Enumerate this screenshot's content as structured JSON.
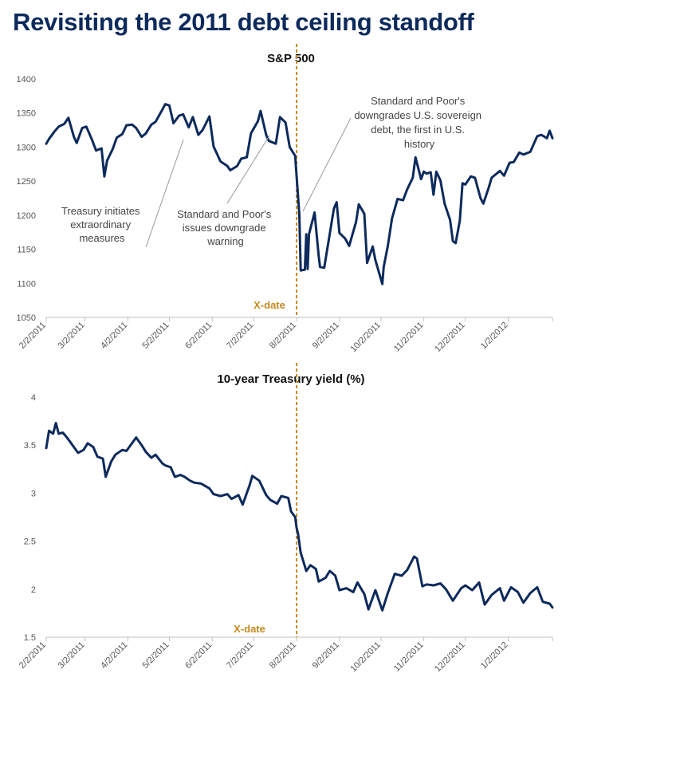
{
  "page": {
    "title": "Revisiting the 2011 debt ceiling standoff"
  },
  "colors": {
    "series": "#0d2a5c",
    "xdate": "#c48a1f",
    "title": "#0d2a5c"
  },
  "chart_data": [
    {
      "type": "line",
      "title": "S&P 500",
      "xlabel": "",
      "ylabel": "",
      "ylim": [
        1050,
        1400
      ],
      "yticks": [
        "1400",
        "1350",
        "1300",
        "1250",
        "1200",
        "1150",
        "1100",
        "1050"
      ],
      "xticks": [
        "2/2/2011",
        "3/2/2011",
        "4/2/2011",
        "5/2/2011",
        "6/2/2011",
        "7/2/2011",
        "8/2/2011",
        "9/2/2011",
        "10/2/2011",
        "11/2/2011",
        "12/2/2011",
        "1/2/2012"
      ],
      "grid": false,
      "marker": {
        "date": "2011-08-02",
        "label": "X-date"
      },
      "annotations": [
        {
          "lines": [
            "Treasury initiates",
            "extraordinary",
            "measures"
          ]
        },
        {
          "lines": [
            "Standard and Poor's",
            "issues downgrade",
            "warning"
          ]
        },
        {
          "lines": [
            "Standard and Poor's",
            "downgrades U.S. sovereign",
            "debt, the first in U.S.",
            "history"
          ]
        }
      ],
      "series": [
        {
          "x": [
            "2011-02-02",
            "2011-02-04",
            "2011-02-08",
            "2011-02-11",
            "2011-02-15",
            "2011-02-18",
            "2011-02-22",
            "2011-02-24",
            "2011-02-28",
            "2011-03-03",
            "2011-03-07",
            "2011-03-10",
            "2011-03-14",
            "2011-03-16",
            "2011-03-18",
            "2011-03-22",
            "2011-03-25",
            "2011-03-29",
            "2011-04-01",
            "2011-04-05",
            "2011-04-08",
            "2011-04-12",
            "2011-04-15",
            "2011-04-19",
            "2011-04-22",
            "2011-04-27",
            "2011-04-29",
            "2011-05-02",
            "2011-05-05",
            "2011-05-09",
            "2011-05-12",
            "2011-05-16",
            "2011-05-19",
            "2011-05-23",
            "2011-05-26",
            "2011-05-31",
            "2011-06-03",
            "2011-06-08",
            "2011-06-13",
            "2011-06-15",
            "2011-06-20",
            "2011-06-23",
            "2011-06-27",
            "2011-06-30",
            "2011-07-05",
            "2011-07-07",
            "2011-07-11",
            "2011-07-13",
            "2011-07-18",
            "2011-07-21",
            "2011-07-25",
            "2011-07-28",
            "2011-08-01",
            "2011-08-02",
            "2011-08-04",
            "2011-08-05",
            "2011-08-08",
            "2011-08-09",
            "2011-08-10",
            "2011-08-11",
            "2011-08-15",
            "2011-08-18",
            "2011-08-19",
            "2011-08-22",
            "2011-08-25",
            "2011-08-29",
            "2011-08-31",
            "2011-09-02",
            "2011-09-06",
            "2011-09-09",
            "2011-09-14",
            "2011-09-16",
            "2011-09-20",
            "2011-09-22",
            "2011-09-26",
            "2011-09-28",
            "2011-10-03",
            "2011-10-04",
            "2011-10-07",
            "2011-10-10",
            "2011-10-14",
            "2011-10-18",
            "2011-10-21",
            "2011-10-25",
            "2011-10-27",
            "2011-10-31",
            "2011-11-02",
            "2011-11-04",
            "2011-11-07",
            "2011-11-09",
            "2011-11-11",
            "2011-11-14",
            "2011-11-17",
            "2011-11-21",
            "2011-11-23",
            "2011-11-25",
            "2011-11-28",
            "2011-11-30",
            "2011-12-02",
            "2011-12-06",
            "2011-12-09",
            "2011-12-13",
            "2011-12-15",
            "2011-12-19",
            "2011-12-21",
            "2011-12-27",
            "2011-12-30",
            "2012-01-03",
            "2012-01-06",
            "2012-01-10",
            "2012-01-13",
            "2012-01-18",
            "2012-01-23",
            "2012-01-26",
            "2012-01-30",
            "2012-02-01",
            "2012-02-03"
          ],
          "values": [
            1305,
            1312,
            1323,
            1330,
            1334,
            1343,
            1315,
            1306,
            1328,
            1330,
            1311,
            1295,
            1298,
            1257,
            1280,
            1297,
            1314,
            1319,
            1332,
            1333,
            1328,
            1315,
            1320,
            1333,
            1337,
            1355,
            1363,
            1361,
            1335,
            1346,
            1348,
            1329,
            1344,
            1318,
            1325,
            1345,
            1301,
            1279,
            1272,
            1266,
            1272,
            1283,
            1285,
            1320,
            1338,
            1353,
            1318,
            1309,
            1305,
            1344,
            1336,
            1300,
            1287,
            1258,
            1201,
            1119,
            1120,
            1172,
            1121,
            1172,
            1204,
            1140,
            1124,
            1123,
            1160,
            1210,
            1219,
            1174,
            1166,
            1155,
            1190,
            1216,
            1202,
            1130,
            1154,
            1134,
            1099,
            1124,
            1155,
            1195,
            1224,
            1222,
            1238,
            1255,
            1285,
            1253,
            1264,
            1261,
            1263,
            1230,
            1264,
            1251,
            1217,
            1193,
            1162,
            1159,
            1192,
            1247,
            1245,
            1257,
            1255,
            1225,
            1217,
            1241,
            1255,
            1265,
            1258,
            1277,
            1278,
            1292,
            1289,
            1293,
            1316,
            1318,
            1313,
            1324,
            1313
          ]
        }
      ]
    },
    {
      "type": "line",
      "title": "10-year Treasury yield (%)",
      "xlabel": "",
      "ylabel": "",
      "ylim": [
        1.5,
        4
      ],
      "yticks": [
        "4",
        "3.5",
        "3",
        "2.5",
        "2",
        "1.5"
      ],
      "xticks": [
        "2/2/2011",
        "3/2/2011",
        "4/2/2011",
        "5/2/2011",
        "6/2/2011",
        "7/2/2011",
        "8/2/2011",
        "9/2/2011",
        "10/2/2011",
        "11/2/2011",
        "12/2/2011",
        "1/2/2012"
      ],
      "grid": false,
      "marker": {
        "date": "2011-08-02",
        "label": "X-date"
      },
      "series": [
        {
          "x": [
            "2011-02-02",
            "2011-02-04",
            "2011-02-07",
            "2011-02-09",
            "2011-02-11",
            "2011-02-14",
            "2011-02-17",
            "2011-02-22",
            "2011-02-25",
            "2011-03-01",
            "2011-03-04",
            "2011-03-08",
            "2011-03-11",
            "2011-03-15",
            "2011-03-17",
            "2011-03-21",
            "2011-03-24",
            "2011-03-29",
            "2011-04-01",
            "2011-04-05",
            "2011-04-08",
            "2011-04-12",
            "2011-04-15",
            "2011-04-19",
            "2011-04-22",
            "2011-04-27",
            "2011-04-29",
            "2011-05-03",
            "2011-05-06",
            "2011-05-10",
            "2011-05-13",
            "2011-05-17",
            "2011-05-20",
            "2011-05-25",
            "2011-05-31",
            "2011-06-03",
            "2011-06-08",
            "2011-06-13",
            "2011-06-16",
            "2011-06-21",
            "2011-06-24",
            "2011-06-29",
            "2011-07-01",
            "2011-07-06",
            "2011-07-11",
            "2011-07-14",
            "2011-07-19",
            "2011-07-22",
            "2011-07-27",
            "2011-07-29",
            "2011-08-01",
            "2011-08-02",
            "2011-08-03",
            "2011-08-05",
            "2011-08-09",
            "2011-08-12",
            "2011-08-16",
            "2011-08-18",
            "2011-08-23",
            "2011-08-26",
            "2011-08-30",
            "2011-09-02",
            "2011-09-07",
            "2011-09-12",
            "2011-09-15",
            "2011-09-20",
            "2011-09-23",
            "2011-09-28",
            "2011-10-03",
            "2011-10-07",
            "2011-10-12",
            "2011-10-17",
            "2011-10-21",
            "2011-10-26",
            "2011-10-28",
            "2011-11-01",
            "2011-11-04",
            "2011-11-09",
            "2011-11-14",
            "2011-11-18",
            "2011-11-23",
            "2011-11-29",
            "2011-12-02",
            "2011-12-07",
            "2011-12-12",
            "2011-12-16",
            "2011-12-21",
            "2011-12-27",
            "2011-12-30",
            "2012-01-04",
            "2012-01-09",
            "2012-01-13",
            "2012-01-18",
            "2012-01-23",
            "2012-01-27",
            "2012-02-01",
            "2012-02-03"
          ],
          "values": [
            3.47,
            3.65,
            3.62,
            3.73,
            3.62,
            3.63,
            3.58,
            3.48,
            3.42,
            3.45,
            3.52,
            3.48,
            3.38,
            3.36,
            3.17,
            3.33,
            3.4,
            3.45,
            3.44,
            3.52,
            3.58,
            3.5,
            3.43,
            3.37,
            3.4,
            3.31,
            3.29,
            3.27,
            3.17,
            3.19,
            3.17,
            3.13,
            3.11,
            3.1,
            3.05,
            2.99,
            2.97,
            2.99,
            2.94,
            2.98,
            2.88,
            3.08,
            3.18,
            3.13,
            2.98,
            2.93,
            2.89,
            2.97,
            2.95,
            2.81,
            2.75,
            2.64,
            2.58,
            2.38,
            2.19,
            2.25,
            2.21,
            2.08,
            2.12,
            2.19,
            2.14,
            1.99,
            2.01,
            1.97,
            2.07,
            1.95,
            1.79,
            1.99,
            1.78,
            1.96,
            2.16,
            2.14,
            2.2,
            2.34,
            2.32,
            2.03,
            2.05,
            2.04,
            2.06,
            2.0,
            1.88,
            2.01,
            2.04,
            1.99,
            2.07,
            1.84,
            1.94,
            2.01,
            1.88,
            2.02,
            1.97,
            1.86,
            1.96,
            2.02,
            1.87,
            1.85,
            1.81
          ]
        }
      ]
    }
  ]
}
